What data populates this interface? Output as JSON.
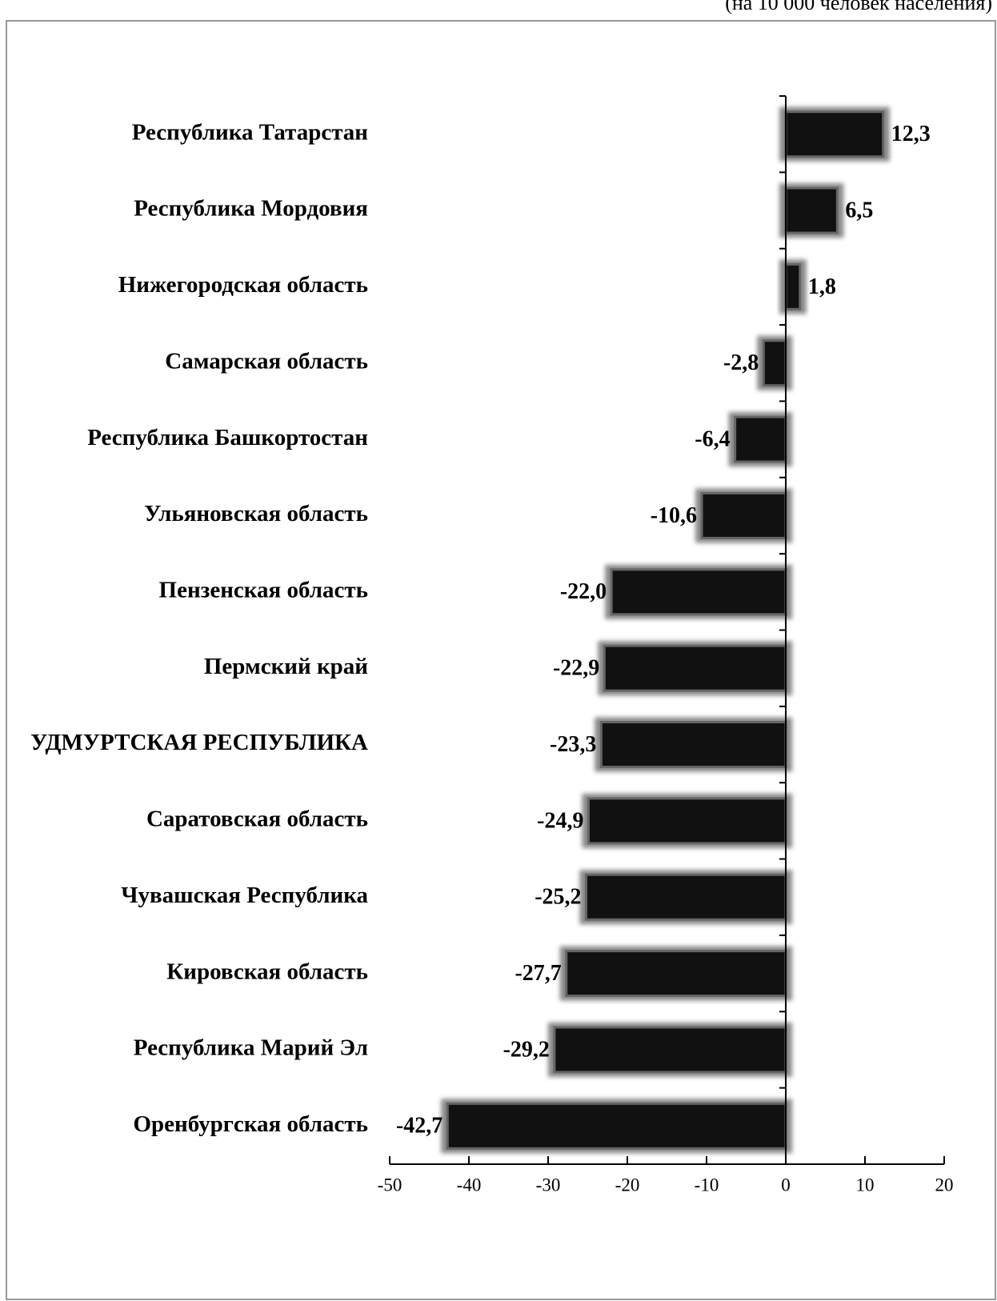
{
  "chart_data": {
    "type": "bar",
    "orientation": "horizontal",
    "subtitle": "(на 10 000 человек населения)",
    "categories": [
      "Республика Татарстан",
      "Республика Мордовия",
      "Нижегородская область",
      "Самарская область",
      "Республика Башкортостан",
      "Ульяновская область",
      "Пензенская область",
      "Пермский край",
      "УДМУРТСКАЯ РЕСПУБЛИКА",
      "Саратовская область",
      "Чувашская Республика",
      "Кировская область",
      "Республика Марий Эл",
      "Оренбургская область"
    ],
    "values": [
      12.3,
      6.5,
      1.8,
      -2.8,
      -6.4,
      -10.6,
      -22.0,
      -22.9,
      -23.3,
      -24.9,
      -25.2,
      -27.7,
      -29.2,
      -42.7
    ],
    "value_labels": [
      "12,3",
      "6,5",
      "1,8",
      "-2,8",
      "-6,4",
      "-10,6",
      "-22,0",
      "-22,9",
      "-23,3",
      "-24,9",
      "-25,2",
      "-27,7",
      "-29,2",
      "-42,7"
    ],
    "color": "#111111",
    "xlim": [
      -50,
      20
    ],
    "xticks": [
      -50,
      -40,
      -30,
      -20,
      -10,
      0,
      10,
      20
    ]
  }
}
